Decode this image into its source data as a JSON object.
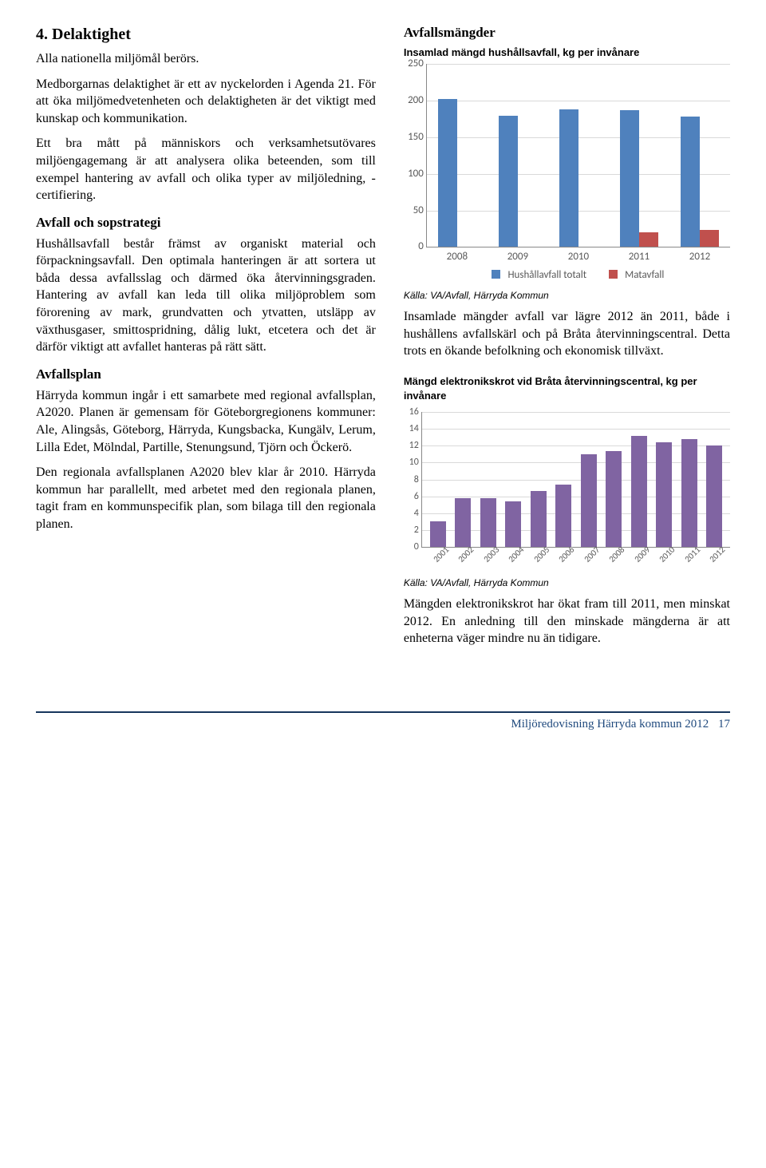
{
  "left": {
    "heading": "4. Delaktighet",
    "p1": "Alla nationella miljömål berörs.",
    "p2": "Medborgarnas delaktighet är ett av nyckel­orden i Agenda 21. För att öka miljömed­vetenheten och delaktigheten är det viktigt med kunskap och kommunikation.",
    "p3": "Ett bra mått på människors och verksam­hetsutövares miljöengagemang är att ana­lysera olika beteenden, som till exempel hantering av avfall och olika typer av miljöledning, -certifiering.",
    "sub1": "Avfall och sopstrategi",
    "p4": "Hushållsavfall består främst av organiskt material och förpackningsavfall. Den optimala hanteringen är att sortera ut båda dessa avfallsslag och därmed öka återvinningsgraden. Hantering av avfall kan leda till olika miljöproblem som förorening av mark, grundvatten och ytvatten, utsläpp av växthusgaser, smitto­spridning, dålig lukt, etcetera och det är därför viktigt att avfallet hanteras på rätt sätt.",
    "sub2": "Avfallsplan",
    "p5": "Härryda kommun ingår i ett samarbete med regional avfallsplan, A2020. Planen är gemensam för Göteborgregionens kom­muner: Ale, Alingsås, Göteborg, Härryda, Kungsbacka, Kungälv, Lerum, Lilla Edet, Mölndal, Partille, Stenungsund, Tjörn och Öckerö.",
    "p6": "Den regionala avfallsplanen A2020 blev klar år 2010. Härryda kommun har parallellt, med arbetet med den regionala planen, tagit fram en kommunspecifik plan, som bilaga till den regionala planen."
  },
  "right": {
    "heading": "Avfallsmängder",
    "chart1_title": "Insamlad mängd hushållsavfall, kg per invånare",
    "chart1": {
      "type": "bar",
      "ymax": 250,
      "ytick": 50,
      "categories": [
        "2008",
        "2009",
        "2010",
        "2011",
        "2012"
      ],
      "seriesA": {
        "label": "Hushållavfall totalt",
        "color": "#4f81bd",
        "values": [
          203,
          180,
          188,
          187,
          179
        ]
      },
      "seriesB": {
        "label": "Matavfall",
        "color": "#c0504d",
        "values": [
          0,
          0,
          0,
          20,
          23
        ]
      },
      "grid_color": "#d9d9d9",
      "axis_color": "#888888",
      "label_color": "#595959",
      "bg": "#ffffff"
    },
    "chart1_source": "Källa: VA/Avfall, Härryda Kommun",
    "p1": "Insamlade mängder avfall var lägre 2012 än 2011, både i hushållens avfallskärl och på Bråta återvinningscentral. Detta trots en ökande befolkning och ekonomisk tillväxt.",
    "chart2_title": "Mängd elektronikskrot vid Bråta återvinningscentral, kg per invånare",
    "chart2": {
      "type": "bar",
      "ymax": 16,
      "ytick": 2,
      "categories": [
        "2001",
        "2002",
        "2003",
        "2004",
        "2005",
        "2006",
        "2007",
        "2008",
        "2009",
        "2010",
        "2011",
        "2012"
      ],
      "color": "#8064a2",
      "values": [
        3.0,
        5.8,
        5.8,
        5.4,
        6.6,
        7.4,
        11.0,
        11.4,
        13.2,
        12.4,
        12.8,
        12.0
      ],
      "grid_color": "#d9d9d9",
      "axis_color": "#888888",
      "label_color": "#595959",
      "bg": "#ffffff"
    },
    "chart2_source": "Källa: VA/Avfall, Härryda Kommun",
    "p2": "Mängden elektronikskrot har ökat fram till 2011, men minskat 2012. En anledning till den minskade mängderna är att enheterna väger mindre nu än tidigare."
  },
  "footer": {
    "text": "Miljöredovisning Härryda kommun 2012",
    "page": "17",
    "rule_color": "#17365d",
    "text_color": "#1f497d"
  }
}
